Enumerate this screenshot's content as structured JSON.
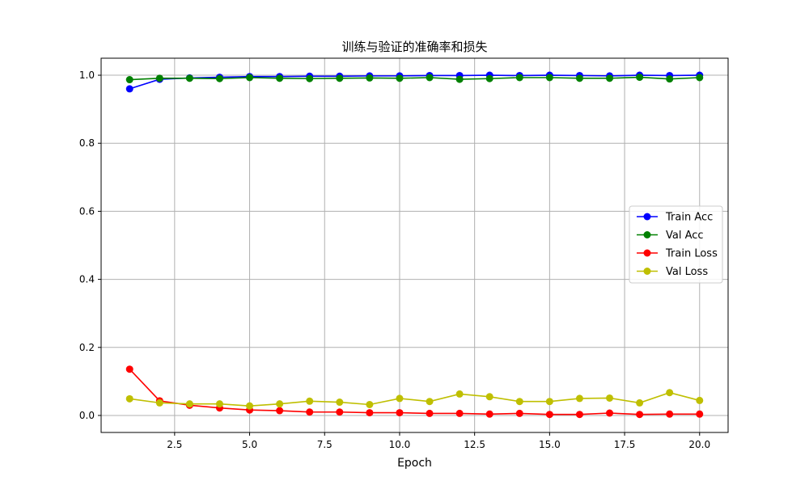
{
  "chart_data": {
    "type": "line",
    "title": "训练与验证的准确率和损失",
    "xlabel": "Epoch",
    "ylabel": "",
    "xlim": [
      0.05,
      20.95
    ],
    "ylim": [
      -0.05,
      1.05
    ],
    "x": [
      1,
      2,
      3,
      4,
      5,
      6,
      7,
      8,
      9,
      10,
      11,
      12,
      13,
      14,
      15,
      16,
      17,
      18,
      19,
      20
    ],
    "x_ticks": [
      2.5,
      5.0,
      7.5,
      10.0,
      12.5,
      15.0,
      17.5,
      20.0
    ],
    "x_tick_labels": [
      "2.5",
      "5.0",
      "7.5",
      "10.0",
      "12.5",
      "15.0",
      "17.5",
      "20.0"
    ],
    "y_ticks": [
      0.0,
      0.2,
      0.4,
      0.6,
      0.8,
      1.0
    ],
    "y_tick_labels": [
      "0.0",
      "0.2",
      "0.4",
      "0.6",
      "0.8",
      "1.0"
    ],
    "grid": true,
    "legend_position": "center-right",
    "series": [
      {
        "name": "Train Acc",
        "color": "#0000ff",
        "values": [
          0.96,
          0.988,
          0.992,
          0.994,
          0.996,
          0.996,
          0.997,
          0.997,
          0.998,
          0.998,
          0.999,
          0.999,
          1.0,
          0.999,
          1.0,
          0.999,
          0.998,
          1.0,
          0.999,
          1.0
        ]
      },
      {
        "name": "Val Acc",
        "color": "#008000",
        "values": [
          0.987,
          0.991,
          0.991,
          0.99,
          0.993,
          0.991,
          0.99,
          0.991,
          0.992,
          0.991,
          0.993,
          0.988,
          0.99,
          0.993,
          0.993,
          0.991,
          0.991,
          0.994,
          0.989,
          0.993
        ]
      },
      {
        "name": "Train Loss",
        "color": "#ff0000",
        "values": [
          0.136,
          0.043,
          0.03,
          0.022,
          0.016,
          0.014,
          0.01,
          0.01,
          0.008,
          0.008,
          0.006,
          0.006,
          0.004,
          0.006,
          0.003,
          0.003,
          0.007,
          0.003,
          0.004,
          0.004
        ]
      },
      {
        "name": "Val Loss",
        "color": "#bfbf00",
        "values": [
          0.049,
          0.037,
          0.034,
          0.034,
          0.028,
          0.034,
          0.042,
          0.039,
          0.032,
          0.05,
          0.041,
          0.063,
          0.055,
          0.041,
          0.041,
          0.05,
          0.051,
          0.037,
          0.067,
          0.044
        ]
      }
    ]
  }
}
